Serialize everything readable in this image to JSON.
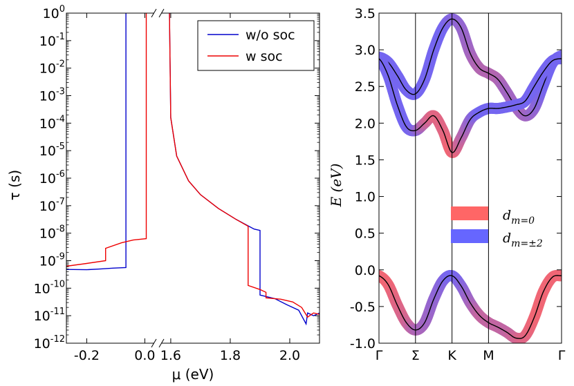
{
  "chart_data": [
    {
      "type": "line",
      "panel": "left",
      "xlabel": "μ (eV)",
      "ylabel": "τ (s)",
      "yscale": "log",
      "ylim_exp": [
        -12,
        0
      ],
      "y_ticks": [
        {
          "base": "10",
          "exp": "0"
        },
        {
          "base": "10",
          "exp": "-1"
        },
        {
          "base": "10",
          "exp": "-2"
        },
        {
          "base": "10",
          "exp": "-3"
        },
        {
          "base": "10",
          "exp": "-4"
        },
        {
          "base": "10",
          "exp": "-5"
        },
        {
          "base": "10",
          "exp": "-6"
        },
        {
          "base": "10",
          "exp": "-7"
        },
        {
          "base": "10",
          "exp": "-8"
        },
        {
          "base": "10",
          "exp": "-9"
        },
        {
          "base": "10",
          "exp": "-10"
        },
        {
          "base": "10",
          "exp": "-11"
        },
        {
          "base": "10",
          "exp": "-12"
        }
      ],
      "broken_x_axis": true,
      "x_segments": [
        {
          "xlim": [
            -0.27,
            0.03
          ],
          "ticks": [
            "-0.2",
            "0.0"
          ],
          "tick_values": [
            -0.2,
            0.0
          ]
        },
        {
          "xlim": [
            1.57,
            2.1
          ],
          "ticks": [
            "1.6",
            "1.8",
            "2.0"
          ],
          "tick_values": [
            1.6,
            1.8,
            2.0
          ]
        }
      ],
      "legend": {
        "position": "top-right",
        "entries": [
          "w/o soc",
          "w soc"
        ]
      },
      "series": [
        {
          "name": "w/o soc",
          "color": "#0000cc",
          "points_log10": [
            [
              -0.27,
              -9.32
            ],
            [
              -0.2,
              -9.33
            ],
            [
              -0.15,
              -9.3
            ],
            [
              -0.11,
              -9.27
            ],
            [
              -0.065,
              -9.25
            ],
            [
              -0.065,
              0.5
            ],
            [
              1.595,
              0.5
            ],
            [
              1.6,
              -3.8
            ],
            [
              1.62,
              -5.2
            ],
            [
              1.66,
              -6.1
            ],
            [
              1.7,
              -6.6
            ],
            [
              1.76,
              -7.1
            ],
            [
              1.82,
              -7.5
            ],
            [
              1.88,
              -7.85
            ],
            [
              1.9,
              -7.9
            ],
            [
              1.9,
              -10.25
            ],
            [
              1.95,
              -10.38
            ],
            [
              1.99,
              -10.6
            ],
            [
              2.03,
              -10.8
            ],
            [
              2.055,
              -11.3
            ],
            [
              2.06,
              -10.9
            ],
            [
              2.08,
              -11.0
            ],
            [
              2.1,
              -10.9
            ]
          ]
        },
        {
          "name": "w soc",
          "color": "#ee0000",
          "points_log10": [
            [
              -0.27,
              -9.2
            ],
            [
              -0.2,
              -9.1
            ],
            [
              -0.135,
              -9.0
            ],
            [
              -0.135,
              -8.55
            ],
            [
              -0.08,
              -8.35
            ],
            [
              -0.04,
              -8.25
            ],
            [
              0.005,
              -8.2
            ],
            [
              0.005,
              0.5
            ],
            [
              1.595,
              0.5
            ],
            [
              1.6,
              -3.8
            ],
            [
              1.62,
              -5.2
            ],
            [
              1.66,
              -6.1
            ],
            [
              1.7,
              -6.6
            ],
            [
              1.76,
              -7.1
            ],
            [
              1.82,
              -7.5
            ],
            [
              1.86,
              -7.75
            ],
            [
              1.86,
              -9.9
            ],
            [
              1.9,
              -10.05
            ],
            [
              1.92,
              -10.15
            ],
            [
              1.92,
              -10.35
            ],
            [
              1.97,
              -10.4
            ],
            [
              2.01,
              -10.5
            ],
            [
              2.04,
              -10.7
            ],
            [
              2.06,
              -11.05
            ],
            [
              2.08,
              -10.9
            ],
            [
              2.1,
              -10.95
            ]
          ]
        }
      ]
    },
    {
      "type": "line",
      "panel": "right",
      "xlabel": "",
      "ylabel": "E (eV)",
      "ylim": [
        -1.0,
        3.5
      ],
      "y_ticks": [
        "3.5",
        "3.0",
        "2.5",
        "2.0",
        "1.5",
        "1.0",
        "0.5",
        "0.0",
        "-0.5",
        "-1.0"
      ],
      "y_tick_values": [
        3.5,
        3.0,
        2.5,
        2.0,
        1.5,
        1.0,
        0.5,
        0.0,
        -0.5,
        -1.0
      ],
      "x_ticks": [
        "Γ",
        "Σ",
        "K",
        "M",
        "Γ"
      ],
      "x_tick_positions": [
        0,
        1,
        2,
        3,
        5
      ],
      "xlim": [
        0,
        5
      ],
      "legend": {
        "position": "center-right",
        "entries": [
          "d_{m=0}",
          "d_{m=±2}"
        ]
      },
      "legend_main": "d",
      "legend_subs": [
        "m=0",
        "m=±2"
      ],
      "colors": {
        "dm0": "#ff6666",
        "dm2": "#6666ff"
      },
      "bands": [
        {
          "x": [
            0,
            0.25,
            0.5,
            0.75,
            1,
            1.25,
            1.5,
            1.75,
            2,
            2.25,
            2.5,
            2.75,
            3,
            3.25,
            3.5,
            3.75,
            4,
            4.25,
            4.5,
            4.75,
            5
          ],
          "E": [
            2.9,
            2.83,
            2.65,
            2.45,
            2.4,
            2.6,
            3.0,
            3.3,
            3.42,
            3.3,
            2.95,
            2.75,
            2.68,
            2.6,
            2.42,
            2.22,
            2.1,
            2.2,
            2.52,
            2.82,
            2.92
          ],
          "dm0_weight": [
            0.1,
            0.1,
            0.1,
            0.1,
            0.1,
            0.1,
            0.1,
            0.1,
            0.2,
            0.3,
            0.4,
            0.5,
            0.5,
            0.5,
            0.4,
            0.4,
            0.4,
            0.3,
            0.1,
            0.1,
            0.1
          ]
        },
        {
          "x": [
            0,
            0.25,
            0.5,
            0.75,
            1,
            1.25,
            1.5,
            1.75,
            2,
            2.25,
            2.5,
            2.75,
            3,
            3.25,
            3.5,
            3.75,
            4,
            4.25,
            4.5,
            4.75,
            5
          ],
          "E": [
            2.88,
            2.65,
            2.25,
            1.95,
            1.9,
            2.0,
            2.1,
            1.9,
            1.6,
            1.8,
            2.05,
            2.15,
            2.2,
            2.2,
            2.22,
            2.25,
            2.3,
            2.5,
            2.7,
            2.85,
            2.88
          ],
          "dm0_weight": [
            0.1,
            0.1,
            0.1,
            0.1,
            0.2,
            0.6,
            0.8,
            0.8,
            0.9,
            0.6,
            0.3,
            0.1,
            0.1,
            0.1,
            0.1,
            0.1,
            0.1,
            0.1,
            0.1,
            0.1,
            0.1
          ]
        },
        {
          "x": [
            0,
            0.25,
            0.5,
            0.75,
            1,
            1.25,
            1.5,
            1.75,
            2,
            2.25,
            2.5,
            2.75,
            3,
            3.25,
            3.5,
            3.75,
            4,
            4.25,
            4.5,
            4.75,
            5
          ],
          "E": [
            -0.08,
            -0.2,
            -0.48,
            -0.72,
            -0.82,
            -0.72,
            -0.4,
            -0.15,
            -0.08,
            -0.22,
            -0.45,
            -0.62,
            -0.72,
            -0.78,
            -0.85,
            -0.93,
            -0.9,
            -0.65,
            -0.3,
            -0.1,
            -0.08
          ],
          "dm0_weight": [
            0.9,
            0.9,
            0.8,
            0.7,
            0.5,
            0.4,
            0.3,
            0.2,
            0.1,
            0.2,
            0.4,
            0.6,
            0.6,
            0.6,
            0.6,
            0.7,
            0.8,
            0.9,
            0.9,
            0.9,
            0.9
          ]
        }
      ]
    }
  ]
}
